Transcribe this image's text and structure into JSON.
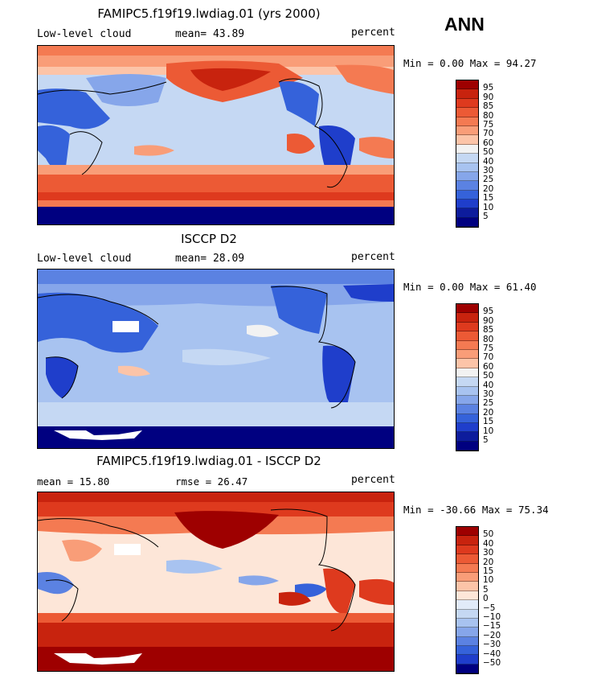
{
  "season": "ANN",
  "panels": [
    {
      "title": "FAMIPC5.f19f19.lwdiag.01 (yrs 2000)",
      "left_label": "Low-level cloud",
      "mid_label": "mean=  43.89",
      "units": "percent",
      "minmax": "Min =   0.00 Max =  94.27",
      "colorbar_labels": [
        "95",
        "90",
        "85",
        "80",
        "75",
        "70",
        "60",
        "50",
        "40",
        "30",
        "25",
        "20",
        "15",
        "10",
        "5"
      ],
      "colorbar_colors": [
        "#9e0000",
        "#c8230e",
        "#de3a1e",
        "#ec5a35",
        "#f47a52",
        "#f99d78",
        "#fcc4a8",
        "#f2f2f2",
        "#c5d8f3",
        "#a8c3f0",
        "#86a6ea",
        "#5b82e2",
        "#3562da",
        "#1f3ecb",
        "#0d1c9c",
        "#000080"
      ]
    },
    {
      "title": "ISCCP D2",
      "left_label": "Low-level cloud",
      "mid_label": "mean=  28.09",
      "units": "percent",
      "minmax": "Min =   0.00 Max =  61.40",
      "colorbar_labels": [
        "95",
        "90",
        "85",
        "80",
        "75",
        "70",
        "60",
        "50",
        "40",
        "30",
        "25",
        "20",
        "15",
        "10",
        "5"
      ],
      "colorbar_colors": [
        "#9e0000",
        "#c8230e",
        "#de3a1e",
        "#ec5a35",
        "#f47a52",
        "#f99d78",
        "#fcc4a8",
        "#f2f2f2",
        "#c5d8f3",
        "#a8c3f0",
        "#86a6ea",
        "#5b82e2",
        "#3562da",
        "#1f3ecb",
        "#0d1c9c",
        "#000080"
      ]
    },
    {
      "title": "FAMIPC5.f19f19.lwdiag.01 - ISCCP D2",
      "left_label": "mean =   15.80",
      "mid_label": "rmse =   26.47",
      "units": "percent",
      "minmax": "Min = -30.66 Max =  75.34",
      "colorbar_labels": [
        "50",
        "40",
        "30",
        "20",
        "15",
        "10",
        "5",
        "0",
        "−5",
        "−10",
        "−15",
        "−20",
        "−30",
        "−40",
        "−50"
      ],
      "colorbar_colors": [
        "#9e0000",
        "#c8230e",
        "#de3a1e",
        "#ec5a35",
        "#f47a52",
        "#f99d78",
        "#fcc4a8",
        "#fde6d8",
        "#e1ebf9",
        "#c5d8f3",
        "#a8c3f0",
        "#86a6ea",
        "#5b82e2",
        "#3562da",
        "#1f3ecb",
        "#000080"
      ]
    }
  ],
  "chart_data": [
    {
      "type": "heatmap",
      "title": "FAMIPC5.f19f19.lwdiag.01 (yrs 2000)",
      "field": "Low-level cloud",
      "units": "percent",
      "season": "ANN",
      "mean": 43.89,
      "min": 0.0,
      "max": 94.27,
      "contour_levels": [
        5,
        10,
        15,
        20,
        25,
        30,
        40,
        50,
        60,
        70,
        75,
        80,
        85,
        90,
        95
      ],
      "map": "global lat-lon, Pacific-centered"
    },
    {
      "type": "heatmap",
      "title": "ISCCP D2",
      "field": "Low-level cloud",
      "units": "percent",
      "season": "ANN",
      "mean": 28.09,
      "min": 0.0,
      "max": 61.4,
      "contour_levels": [
        5,
        10,
        15,
        20,
        25,
        30,
        40,
        50,
        60,
        70,
        75,
        80,
        85,
        90,
        95
      ],
      "map": "global lat-lon, Pacific-centered"
    },
    {
      "type": "heatmap",
      "title": "FAMIPC5.f19f19.lwdiag.01 - ISCCP D2",
      "units": "percent",
      "season": "ANN",
      "mean": 15.8,
      "rmse": 26.47,
      "min": -30.66,
      "max": 75.34,
      "contour_levels": [
        -50,
        -40,
        -30,
        -20,
        -15,
        -10,
        -5,
        0,
        5,
        10,
        15,
        20,
        30,
        40,
        50
      ],
      "map": "global lat-lon, Pacific-centered"
    }
  ]
}
